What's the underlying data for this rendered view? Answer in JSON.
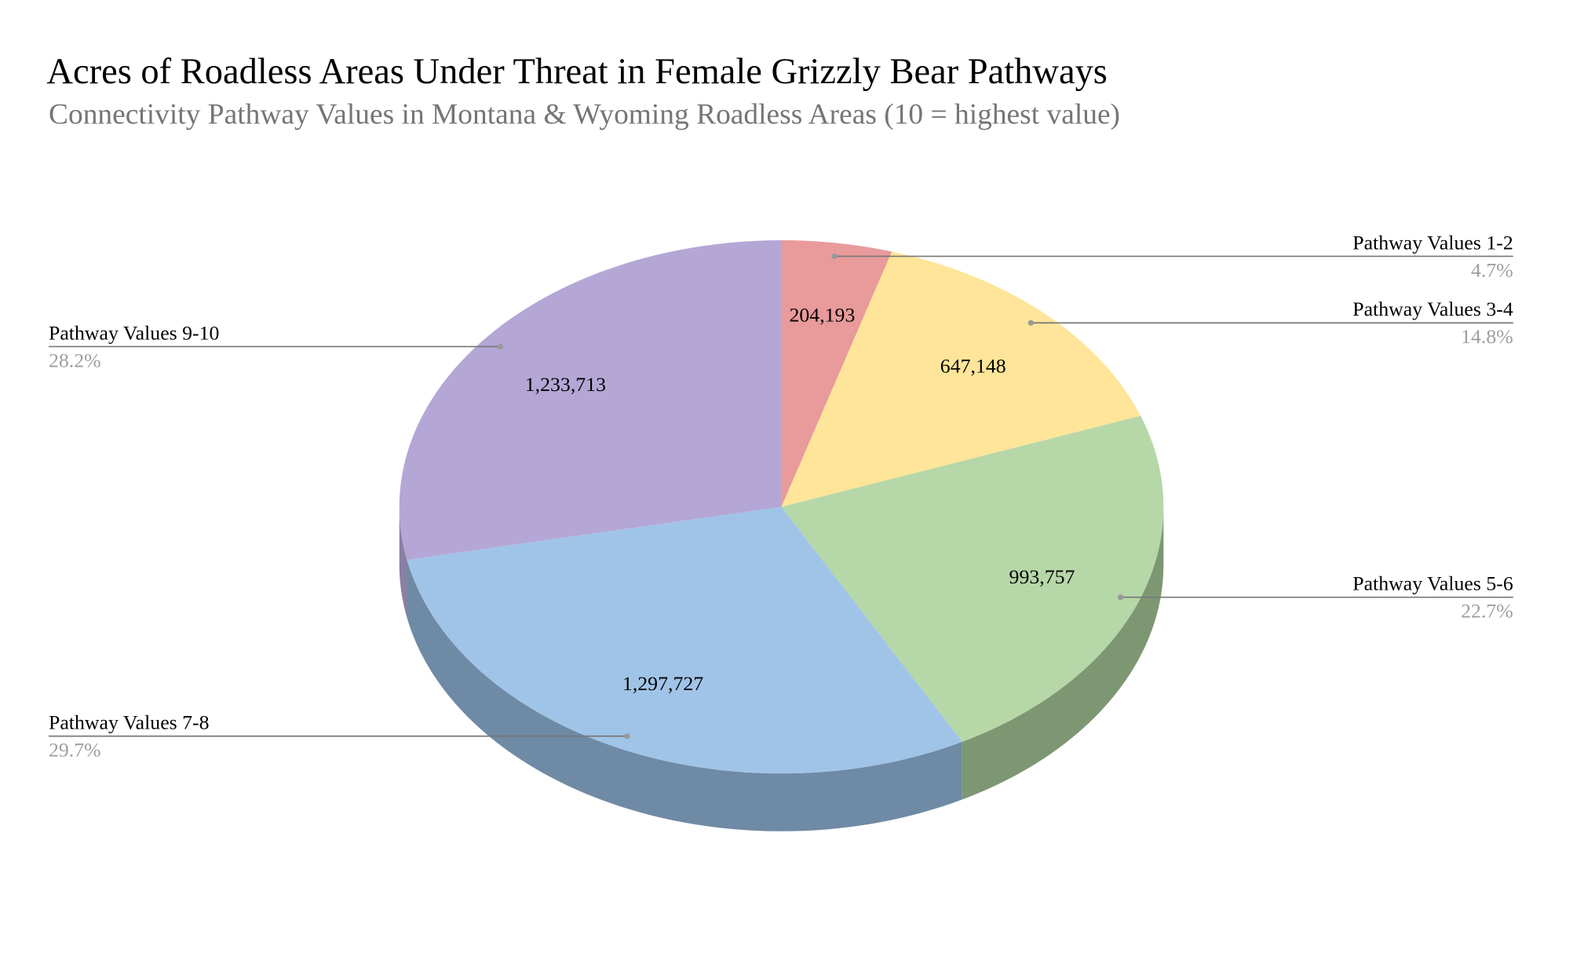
{
  "chart_data": {
    "type": "pie",
    "title": "Acres of Roadless Areas Under Threat in Female Grizzly Bear Pathways",
    "subtitle": "Connectivity Pathway Values in Montana & Wyoming Roadless Areas (10 = highest value)",
    "categories": [
      "Pathway Values 1-2",
      "Pathway Values 3-4",
      "Pathway Values 5-6",
      "Pathway Values 7-8",
      "Pathway Values 9-10"
    ],
    "values": [
      204193,
      647148,
      993757,
      1297727,
      1233713
    ],
    "value_labels": [
      "204,193",
      "647,148",
      "993,757",
      "1,297,727",
      "1,233,713"
    ],
    "percent_labels": [
      "4.7%",
      "14.8%",
      "22.7%",
      "29.7%",
      "28.2%"
    ],
    "colors": [
      "#e99a9a",
      "#fee599",
      "#b6d7a8",
      "#a0c4e8",
      "#b4a7d6"
    ],
    "side_colors": [
      "#a66e6e",
      "#b3a16c",
      "#7e9773",
      "#6f8aa5",
      "#8a7fa4"
    ]
  }
}
